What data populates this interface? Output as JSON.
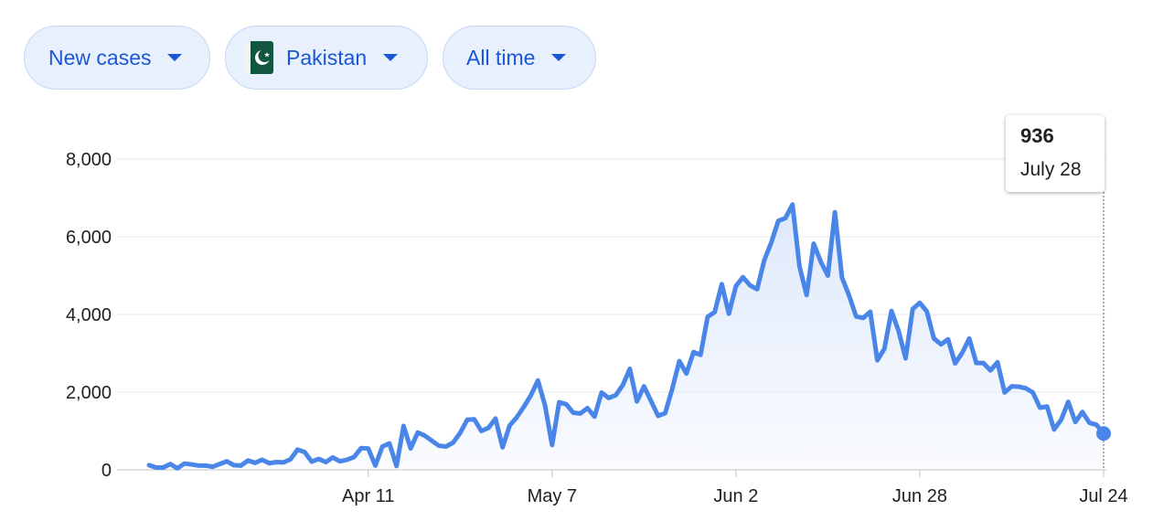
{
  "controls": {
    "metric": {
      "label": "New cases",
      "caret_icon": "caret-down-icon"
    },
    "country": {
      "label": "Pakistan",
      "flag_icon": "pakistan-flag-icon",
      "caret_icon": "caret-down-icon"
    },
    "range": {
      "label": "All time",
      "caret_icon": "caret-down-icon"
    }
  },
  "tooltip": {
    "value": "936",
    "date": "July 28"
  },
  "colors": {
    "line": "#4a86e8",
    "fill_top": "#dbe6fb",
    "grid": "#e8eaed",
    "chip_bg": "#e8f0fe",
    "chip_text": "#1a57d6"
  },
  "chart_data": {
    "type": "area",
    "title": "",
    "xlabel": "",
    "ylabel": "",
    "ylim": [
      0,
      8000
    ],
    "yticks": [
      0,
      2000,
      4000,
      6000,
      8000
    ],
    "ytick_labels": [
      "0",
      "2,000",
      "4,000",
      "6,000",
      "8,000"
    ],
    "xtick_labels": [
      "Apr 11",
      "May 7",
      "Jun 2",
      "Jun 28",
      "Jul 24"
    ],
    "grid": true,
    "x_start": "2020-03-11",
    "x_end": "2020-07-28",
    "series": [
      {
        "name": "",
        "values": [
          120,
          60,
          60,
          150,
          40,
          160,
          140,
          110,
          110,
          80,
          150,
          220,
          120,
          110,
          240,
          180,
          260,
          170,
          200,
          190,
          270,
          520,
          460,
          210,
          280,
          200,
          320,
          220,
          260,
          330,
          560,
          550,
          110,
          600,
          680,
          100,
          1130,
          550,
          960,
          880,
          750,
          620,
          600,
          700,
          950,
          1290,
          1300,
          1000,
          1080,
          1320,
          580,
          1140,
          1350,
          1620,
          1920,
          2300,
          1660,
          640,
          1740,
          1690,
          1470,
          1450,
          1590,
          1370,
          1990,
          1850,
          1920,
          2180,
          2600,
          1760,
          2150,
          1770,
          1390,
          1460,
          2090,
          2800,
          2480,
          3030,
          2960,
          3940,
          4060,
          4780,
          4020,
          4730,
          4960,
          4750,
          4650,
          5390,
          5850,
          6410,
          6480,
          6830,
          5230,
          4500,
          5820,
          5360,
          5000,
          6630,
          4950,
          4490,
          3950,
          3910,
          4070,
          2820,
          3120,
          4090,
          3580,
          2870,
          4140,
          4300,
          4080,
          3380,
          3230,
          3360,
          2740,
          3010,
          3380,
          2750,
          2750,
          2560,
          2770,
          1990,
          2150,
          2140,
          2100,
          1990,
          1600,
          1630,
          1040,
          1290,
          1750,
          1230,
          1490,
          1210,
          1160,
          936
        ]
      }
    ]
  }
}
